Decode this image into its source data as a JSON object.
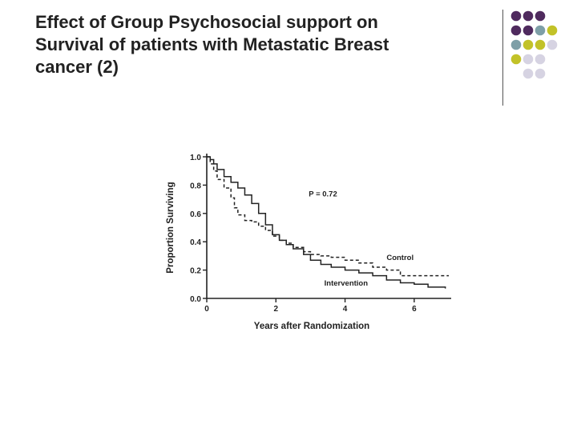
{
  "slide": {
    "title_lines": [
      "Effect of Group Psychosocial support on",
      "Survival of patients with Metastatic Breast",
      "cancer (2)"
    ]
  },
  "decoration": {
    "dot_colors": {
      "purple": "#4f2a5e",
      "teal": "#7e9fa7",
      "olive": "#c2c228",
      "lavender": "#d6d3e2"
    }
  },
  "chart_data": {
    "type": "line",
    "xlabel": "Years after Randomization",
    "ylabel": "Proportion Surviving",
    "xlim": [
      0,
      7
    ],
    "ylim": [
      0,
      1
    ],
    "xticks": [
      0,
      2,
      4,
      6
    ],
    "yticks": [
      "0.0",
      "0.2",
      "0.4",
      "0.6",
      "0.8",
      "1.0"
    ],
    "annotation": "P = 0.72",
    "series": [
      {
        "name": "Intervention",
        "style": "solid",
        "x": [
          0,
          0.1,
          0.2,
          0.3,
          0.5,
          0.7,
          0.9,
          1.1,
          1.3,
          1.5,
          1.7,
          1.9,
          2.1,
          2.3,
          2.5,
          2.8,
          3.0,
          3.3,
          3.6,
          4.0,
          4.4,
          4.8,
          5.2,
          5.6,
          6.0,
          6.4,
          6.9
        ],
        "y": [
          1.0,
          0.98,
          0.95,
          0.91,
          0.86,
          0.82,
          0.78,
          0.73,
          0.67,
          0.6,
          0.52,
          0.45,
          0.41,
          0.38,
          0.35,
          0.31,
          0.27,
          0.24,
          0.22,
          0.2,
          0.18,
          0.16,
          0.13,
          0.11,
          0.1,
          0.08,
          0.07
        ]
      },
      {
        "name": "Control",
        "style": "dashed",
        "x": [
          0,
          0.1,
          0.2,
          0.3,
          0.5,
          0.7,
          0.8,
          0.9,
          1.1,
          1.3,
          1.5,
          1.7,
          1.9,
          2.1,
          2.3,
          2.5,
          2.8,
          3.0,
          3.3,
          3.6,
          4.0,
          4.4,
          4.8,
          5.2,
          5.6,
          6.0,
          6.5,
          7.0
        ],
        "y": [
          1.0,
          0.95,
          0.9,
          0.84,
          0.78,
          0.71,
          0.64,
          0.59,
          0.55,
          0.54,
          0.51,
          0.48,
          0.44,
          0.41,
          0.39,
          0.36,
          0.33,
          0.31,
          0.3,
          0.29,
          0.27,
          0.25,
          0.22,
          0.2,
          0.16,
          0.16,
          0.16,
          0.16
        ]
      }
    ],
    "series_labels": [
      {
        "text": "Control",
        "x": 5.2,
        "y": 0.27,
        "color": "#222222"
      },
      {
        "text": "Intervention",
        "x": 3.4,
        "y": 0.09,
        "color": "#222222"
      }
    ]
  }
}
